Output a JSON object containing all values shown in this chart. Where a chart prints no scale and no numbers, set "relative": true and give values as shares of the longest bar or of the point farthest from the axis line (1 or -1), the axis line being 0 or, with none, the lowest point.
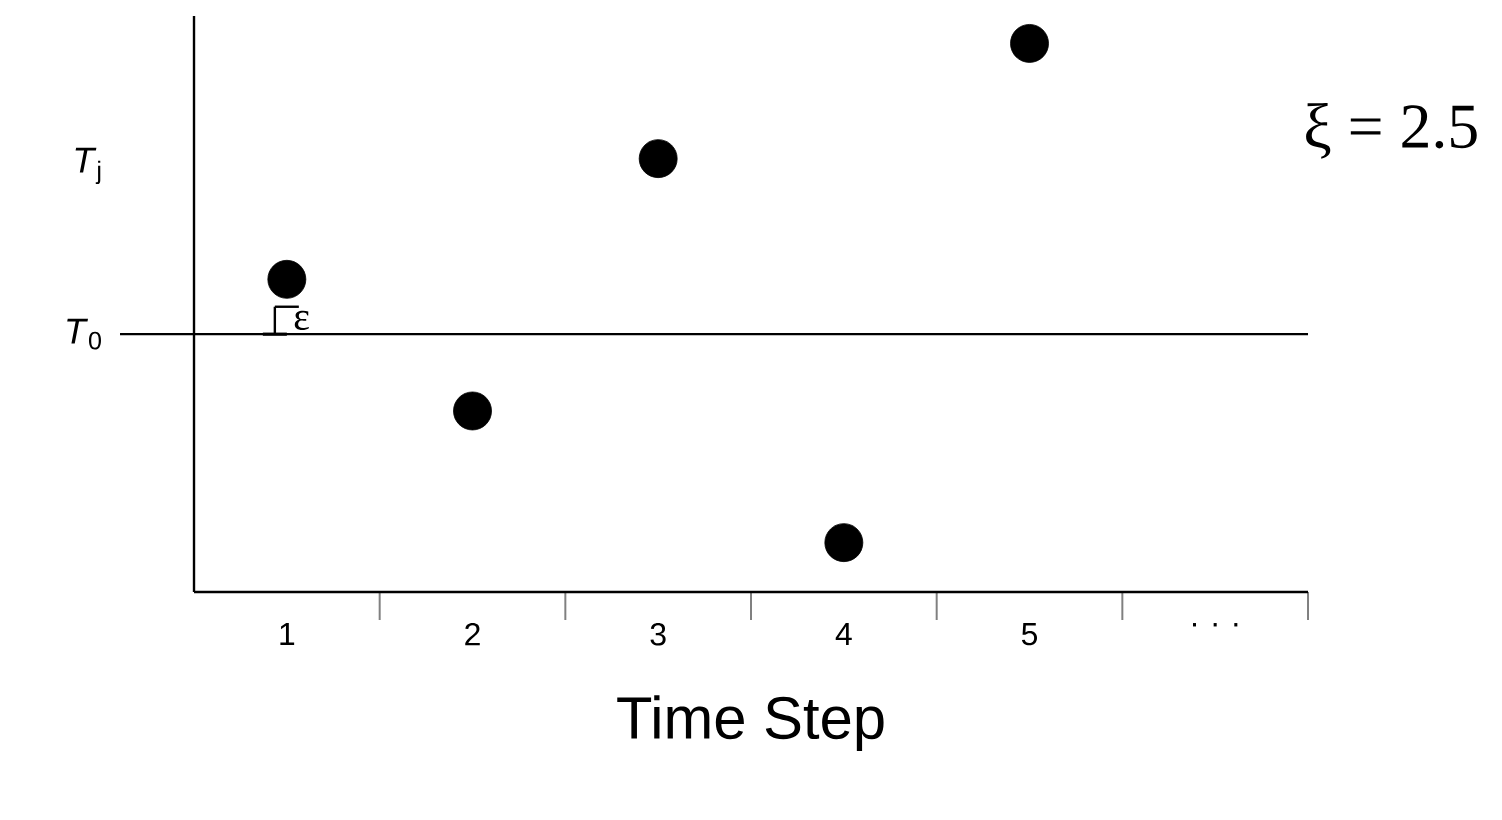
{
  "chart_data": {
    "type": "scatter",
    "relative": true,
    "xlabel": "Time Step",
    "categories": [
      "1",
      "2",
      "3",
      "4",
      "5",
      ". . ."
    ],
    "series": [
      {
        "color": "#000000",
        "values": [
          0.57,
          0.33,
          0.79,
          0.09,
          1,
          null
        ]
      }
    ],
    "ref_lines": [
      {
        "axis": "y",
        "value": 0.47,
        "label": "*T*$_{0}$",
        "color": "#000000"
      }
    ],
    "annotations": [
      "*T*$_{j}$",
      {
        "text": "ε",
        "x": "1",
        "y": 0.52
      },
      "ξ = 2.5"
    ],
    "grid": false
  }
}
